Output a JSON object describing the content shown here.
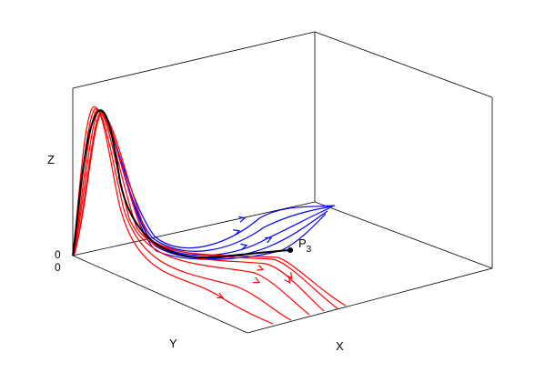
{
  "chart_data": {
    "type": "line",
    "projection": "3d",
    "xlabel": "X",
    "ylabel": "Y",
    "zlabel": "Z",
    "tick_labels": {
      "origin_z": "0",
      "origin_y": "0"
    },
    "point": {
      "label": "P",
      "subscript": "3",
      "color": "#000000"
    },
    "grid": false,
    "box": true,
    "series": [
      {
        "color": "#0000ff",
        "group": "blue-family",
        "count": 5
      },
      {
        "color": "#ff0000",
        "group": "red-family",
        "count": 6
      },
      {
        "color": "#000000",
        "group": "separatrix",
        "count": 1
      }
    ]
  }
}
